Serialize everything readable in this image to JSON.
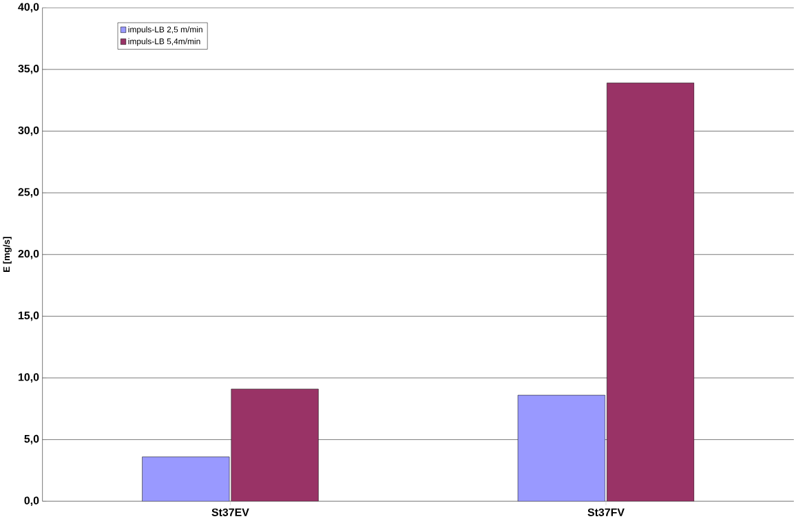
{
  "chart_data": {
    "type": "bar",
    "ylabel": "E [mg/s]",
    "categories": [
      "St37EV",
      "St37FV"
    ],
    "series": [
      {
        "name": "impuls-LB 2,5 m/min",
        "color": "#9999ff",
        "values": [
          3.6,
          8.6
        ]
      },
      {
        "name": "impuls-LB 5,4m/min",
        "color": "#993366",
        "values": [
          9.1,
          33.9
        ]
      }
    ],
    "ylim": [
      0,
      40
    ],
    "yticks": [
      {
        "value": 0,
        "label": "0,0"
      },
      {
        "value": 5,
        "label": "5,0"
      },
      {
        "value": 10,
        "label": "10,0"
      },
      {
        "value": 15,
        "label": "15,0"
      },
      {
        "value": 20,
        "label": "20,0"
      },
      {
        "value": 25,
        "label": "25,0"
      },
      {
        "value": 30,
        "label": "30,0"
      },
      {
        "value": 35,
        "label": "35,0"
      },
      {
        "value": 40,
        "label": "40,0"
      }
    ],
    "grid": "y",
    "legend": "top left"
  }
}
